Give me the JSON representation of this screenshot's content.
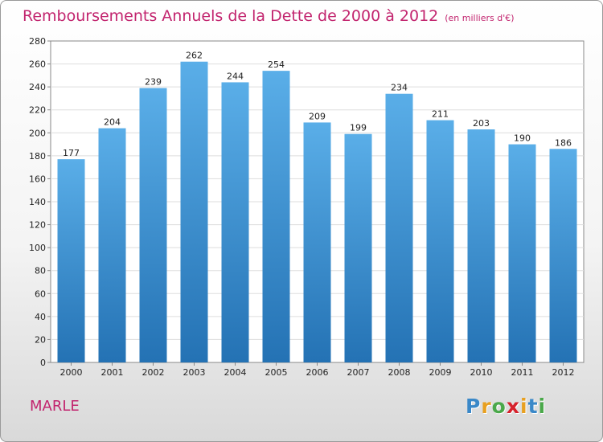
{
  "title": "Remboursements Annuels de la Dette de 2000 à 2012",
  "subtitle": "(en milliers d'€)",
  "commune": "MARLE",
  "logo": {
    "text": "Proxiti",
    "letters": [
      "P",
      "r",
      "o",
      "x",
      "i",
      "t",
      "i"
    ],
    "colors": [
      "#3a88c8",
      "#e8a020",
      "#4aa84a",
      "#d6222c",
      "#e8a020",
      "#3a88c8",
      "#4aa84a"
    ]
  },
  "colors": {
    "title": "#c2246e",
    "bar_top": "#5aaee8",
    "bar_bottom": "#2472b4",
    "grid": "#dddddd"
  },
  "chart_data": {
    "type": "bar",
    "title": "Remboursements Annuels de la Dette de 2000 à 2012",
    "xlabel": "",
    "ylabel": "",
    "categories": [
      "2000",
      "2001",
      "2002",
      "2003",
      "2004",
      "2005",
      "2006",
      "2007",
      "2008",
      "2009",
      "2010",
      "2011",
      "2012"
    ],
    "values": [
      177,
      204,
      239,
      262,
      244,
      254,
      209,
      199,
      234,
      211,
      203,
      190,
      186
    ],
    "ylim": [
      0,
      280
    ],
    "yticks": [
      0,
      20,
      40,
      60,
      80,
      100,
      120,
      140,
      160,
      180,
      200,
      220,
      240,
      260,
      280
    ],
    "grid": true
  }
}
